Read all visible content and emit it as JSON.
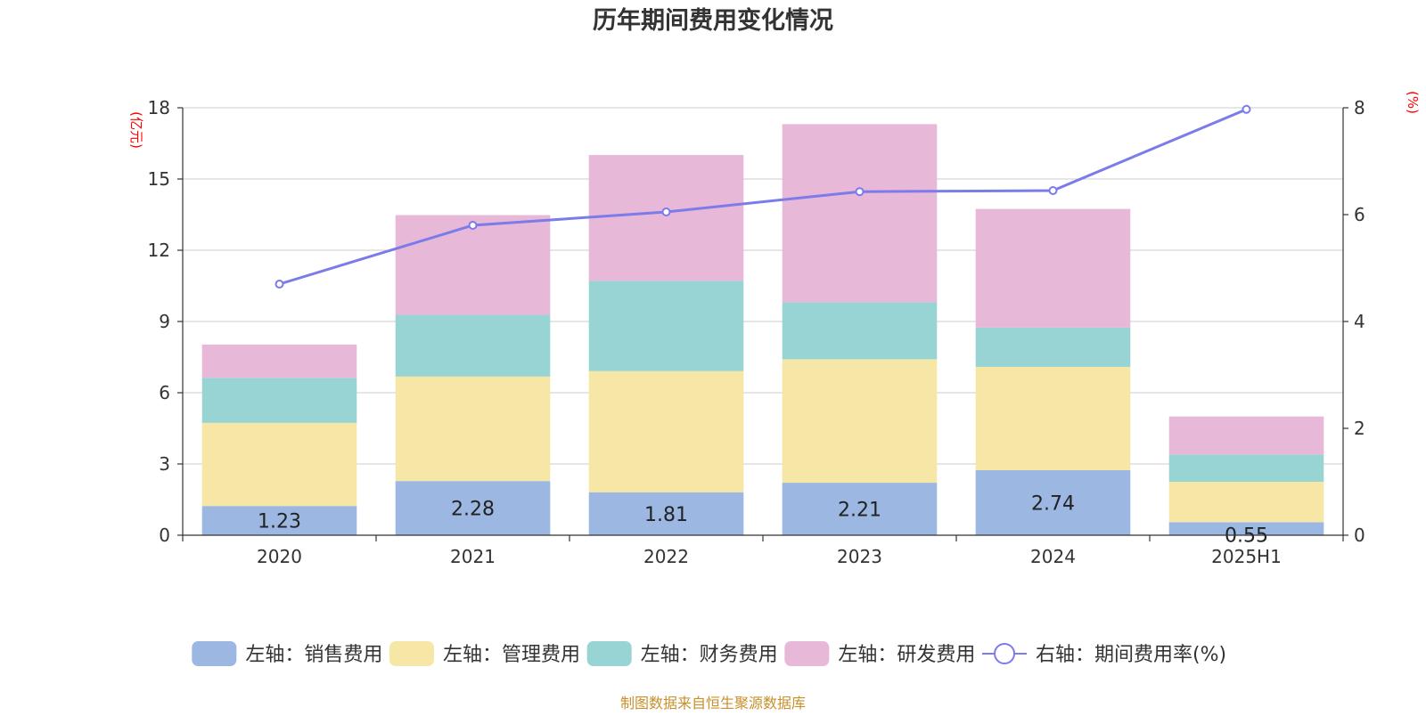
{
  "chart_data": {
    "type": "bar",
    "title": "历年期间费用变化情况",
    "categories": [
      "2020",
      "2021",
      "2022",
      "2023",
      "2024",
      "2025H1"
    ],
    "series": [
      {
        "name": "左轴：销售费用",
        "axis": "left",
        "color": "#9bb7e2",
        "values": [
          1.23,
          2.28,
          1.81,
          2.21,
          2.74,
          0.55
        ],
        "labels_shown": true
      },
      {
        "name": "左轴：管理费用",
        "axis": "left",
        "color": "#f7e7a6",
        "values": [
          3.5,
          4.4,
          5.1,
          5.2,
          4.35,
          1.7
        ]
      },
      {
        "name": "左轴：财务费用",
        "axis": "left",
        "color": "#98d4d4",
        "values": [
          1.9,
          2.6,
          3.8,
          2.4,
          1.65,
          1.15
        ]
      },
      {
        "name": "左轴：研发费用",
        "axis": "left",
        "color": "#e8b8d9",
        "values": [
          1.4,
          4.2,
          5.3,
          7.5,
          5.0,
          1.6
        ]
      }
    ],
    "line_series": {
      "name": "右轴：期间费用率(%)",
      "axis": "right",
      "color": "#7b7bea",
      "values": [
        4.7,
        5.8,
        6.05,
        6.43,
        6.45,
        7.97
      ]
    },
    "y_left": {
      "unit": "(亿元)",
      "ylim": [
        0,
        18
      ],
      "ticks": [
        "0",
        "3",
        "6",
        "9",
        "12",
        "15",
        "18"
      ]
    },
    "y_right": {
      "unit": "(%)",
      "ylim": [
        0,
        8
      ],
      "ticks": [
        "0",
        "2",
        "4",
        "6",
        "8"
      ]
    },
    "grid": true,
    "legend_position": "bottom"
  },
  "footer": "制图数据来自恒生聚源数据库"
}
